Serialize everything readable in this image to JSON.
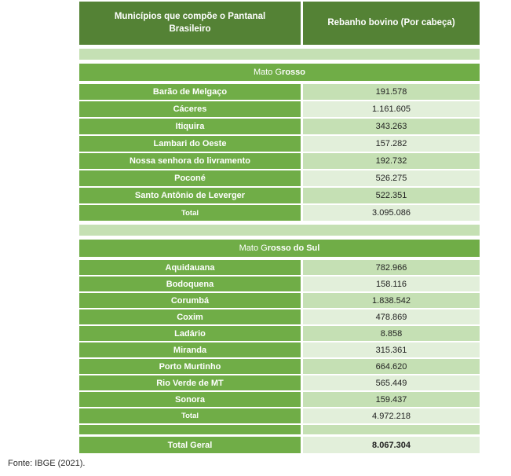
{
  "header": {
    "col_municipios": "Municípios que compõe o Pantanal Brasileiro",
    "col_rebanho": "Rebanho bovino (Por cabeça)"
  },
  "sections": [
    {
      "title_full": "Mato Grosso",
      "title_normal": "Mato G",
      "title_bold": "rosso",
      "rows": [
        {
          "name": "Barão de Melgaço",
          "value": "191.578"
        },
        {
          "name": "Cáceres",
          "value": "1.161.605"
        },
        {
          "name": "Itiquira",
          "value": "343.263"
        },
        {
          "name": "Lambari do Oeste",
          "value": "157.282"
        },
        {
          "name": "Nossa senhora do livramento",
          "value": "192.732"
        },
        {
          "name": "Poconé",
          "value": "526.275"
        },
        {
          "name": "Santo Antônio de Leverger",
          "value": "522.351"
        }
      ],
      "total": {
        "label": "Total",
        "value": "3.095.086"
      }
    },
    {
      "title_full": "Mato Grosso do Sul",
      "title_normal": "Mato G",
      "title_bold": "rosso do Sul",
      "rows": [
        {
          "name": "Aquidauana",
          "value": "782.966"
        },
        {
          "name": "Bodoquena",
          "value": "158.116"
        },
        {
          "name": "Corumbá",
          "value": "1.838.542"
        },
        {
          "name": "Coxim",
          "value": "478.869"
        },
        {
          "name": "Ladário",
          "value": "8.858"
        },
        {
          "name": "Miranda",
          "value": "315.361"
        },
        {
          "name": "Porto Murtinho",
          "value": "664.620"
        },
        {
          "name": "Rio Verde de MT",
          "value": "565.449"
        },
        {
          "name": "Sonora",
          "value": "159.437"
        }
      ],
      "total": {
        "label": "Total",
        "value": "4.972.218"
      }
    }
  ],
  "grand_total": {
    "label": "Total Geral",
    "value": "8.067.304"
  },
  "footer": {
    "source": "Fonte: IBGE (2021)."
  },
  "colors": {
    "header_green": "#548235",
    "row_green": "#70AD47",
    "band_green": "#C5E0B4",
    "cell_light_green": "#E2EFDA",
    "value_text": "#1f1f1f"
  }
}
